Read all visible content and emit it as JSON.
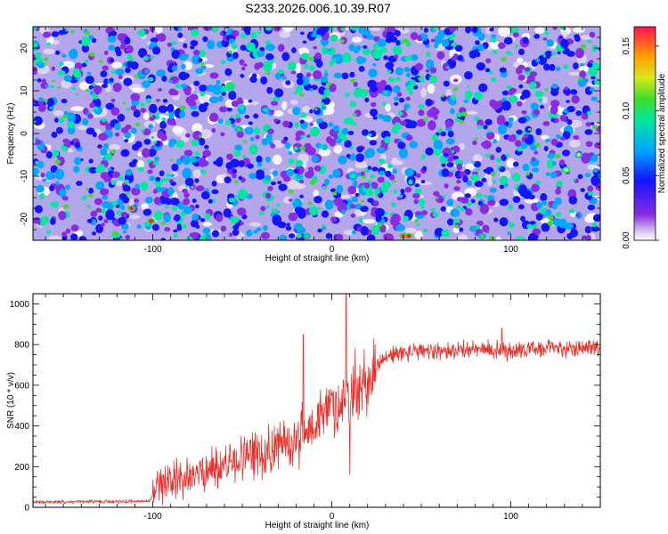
{
  "title": "S233.2026.006.10.39.R07",
  "chart_data": [
    {
      "type": "heatmap",
      "name": "spectrogram",
      "xlabel": "Height of straight line (km)",
      "ylabel": "Frequency (Hz)",
      "xlim": [
        -167,
        150
      ],
      "ylim": [
        -25,
        25
      ],
      "xticks": [
        -100,
        0,
        100
      ],
      "xtick_labels": [
        "-100",
        "0",
        "100"
      ],
      "yticks": [
        -20,
        -10,
        0,
        10,
        20
      ],
      "ytick_labels": [
        "-20",
        "-10",
        "0",
        "10",
        "20"
      ],
      "colorbar": {
        "label": "Normalized spectral amplitude",
        "range": [
          0.0,
          0.165
        ],
        "ticks": [
          0.0,
          0.05,
          0.1,
          0.15
        ],
        "tick_labels": [
          "0.00",
          "0.05",
          "0.10",
          "0.15"
        ],
        "colormap": "rainbow"
      },
      "hotspots": [
        {
          "x": -112,
          "y": -17.5,
          "v": 0.16
        },
        {
          "x": -101,
          "y": -20.5,
          "v": 0.16
        },
        {
          "x": 40,
          "y": -24,
          "v": 0.16
        },
        {
          "x": 43,
          "y": -24,
          "v": 0.16
        },
        {
          "x": 131,
          "y": -8.5,
          "v": 0.12
        },
        {
          "x": 138,
          "y": -5,
          "v": 0.11
        },
        {
          "x": -52,
          "y": 1,
          "v": 0.1
        },
        {
          "x": -37,
          "y": 5.5,
          "v": 0.09
        },
        {
          "x": 30,
          "y": 9.5,
          "v": 0.09
        },
        {
          "x": 84,
          "y": -24,
          "v": 0.1
        },
        {
          "x": -14,
          "y": -24,
          "v": 0.1
        }
      ]
    },
    {
      "type": "line",
      "name": "snr",
      "xlabel": "Height of straight line (km)",
      "ylabel": "SNR (10 * v/v)",
      "xlim": [
        -167,
        150
      ],
      "ylim": [
        0,
        1050
      ],
      "xticks": [
        -100,
        0,
        100
      ],
      "xtick_labels": [
        "-100",
        "0",
        "100"
      ],
      "yticks": [
        0,
        200,
        400,
        600,
        800,
        1000
      ],
      "ytick_labels": [
        "0",
        "200",
        "400",
        "600",
        "800",
        "1000"
      ],
      "line_color": "#e8322c",
      "baseline": {
        "x": [
          -167,
          -102,
          -98,
          -90,
          -80,
          -70,
          -60,
          -50,
          -40,
          -30,
          -20,
          -15,
          -10,
          -5,
          0,
          5,
          10,
          15,
          20,
          25,
          30,
          40,
          60,
          80,
          100,
          120,
          150
        ],
        "y": [
          25,
          30,
          90,
          120,
          150,
          180,
          210,
          240,
          270,
          300,
          330,
          370,
          410,
          450,
          490,
          520,
          540,
          560,
          610,
          700,
          740,
          760,
          770,
          775,
          775,
          780,
          790
        ]
      },
      "spikes": [
        {
          "x": -16,
          "y": 850
        },
        {
          "x": 8,
          "y": 1050
        },
        {
          "x": 10,
          "y": 160
        },
        {
          "x": 13,
          "y": 780
        },
        {
          "x": 95,
          "y": 880
        },
        {
          "x": 98,
          "y": 720
        }
      ]
    }
  ]
}
